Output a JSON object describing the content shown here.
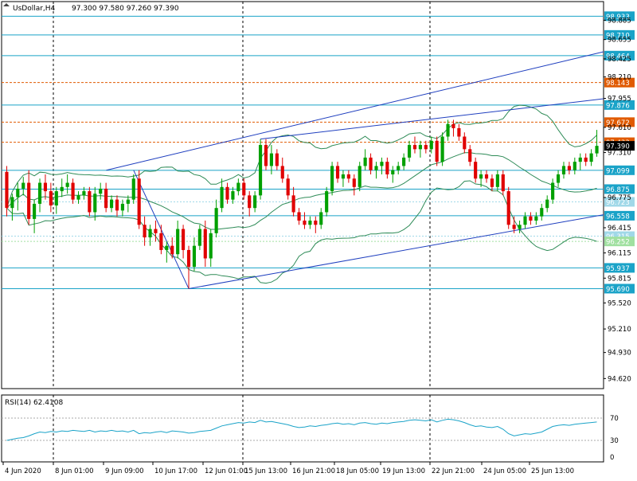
{
  "header": {
    "symbol": "UsDollar,H4",
    "ohlc": "97.300 97.580 97.260 97.390"
  },
  "rsi_label": "RSI(14) 62.4108",
  "colors": {
    "bull": "#00a000",
    "bear": "#e00000",
    "ma": "#2e8b57",
    "level": "#1aa3c8",
    "resistance": "#e05a00",
    "trend": "#1f3fbf",
    "rsi": "#1aa3c8",
    "price_marker": "#000000"
  },
  "chart_data": {
    "type": "candlestick",
    "title": "",
    "ylim": [
      94.5,
      99.05
    ],
    "y_ticks": [
      "98.885",
      "98.655",
      "98.425",
      "98.210",
      "97.955",
      "97.610",
      "97.310",
      "96.775",
      "96.415",
      "96.115",
      "95.815",
      "95.520",
      "95.210",
      "94.930",
      "94.620"
    ],
    "x_ticks": [
      "4 Jun 2020",
      "8 Jun 01:00",
      "9 Jun 09:00",
      "10 Jun 17:00",
      "12 Jun 01:00",
      "15 Jun 13:00",
      "16 Jun 21:00",
      "18 Jun 05:00",
      "19 Jun 13:00",
      "22 Jun 21:00",
      "24 Jun 05:00",
      "25 Jun 13:00"
    ],
    "candles": [
      [
        97.08,
        97.15,
        96.55,
        96.65
      ],
      [
        96.65,
        96.82,
        96.5,
        96.78
      ],
      [
        96.78,
        96.95,
        96.62,
        96.88
      ],
      [
        96.88,
        97.02,
        96.8,
        96.95
      ],
      [
        96.95,
        97.1,
        96.45,
        96.52
      ],
      [
        96.52,
        96.75,
        96.35,
        96.7
      ],
      [
        96.7,
        97.0,
        96.6,
        96.95
      ],
      [
        96.95,
        97.05,
        96.75,
        96.85
      ],
      [
        96.85,
        96.95,
        96.6,
        96.68
      ],
      [
        96.68,
        96.9,
        96.58,
        96.85
      ],
      [
        96.85,
        97.0,
        96.78,
        96.9
      ],
      [
        96.9,
        97.05,
        96.82,
        96.95
      ],
      [
        96.95,
        97.0,
        96.7,
        96.75
      ],
      [
        96.75,
        96.85,
        96.7,
        96.8
      ],
      [
        96.8,
        96.9,
        96.75,
        96.85
      ],
      [
        96.85,
        96.9,
        96.55,
        96.6
      ],
      [
        96.6,
        96.9,
        96.5,
        96.82
      ],
      [
        96.82,
        96.95,
        96.75,
        96.88
      ],
      [
        96.88,
        96.95,
        96.6,
        96.65
      ],
      [
        96.65,
        96.8,
        96.6,
        96.75
      ],
      [
        96.75,
        96.8,
        96.55,
        96.62
      ],
      [
        96.62,
        96.75,
        96.55,
        96.7
      ],
      [
        96.7,
        96.8,
        96.6,
        96.75
      ],
      [
        96.75,
        97.05,
        96.7,
        97.0
      ],
      [
        97.0,
        97.1,
        96.4,
        96.45
      ],
      [
        96.45,
        96.55,
        96.2,
        96.3
      ],
      [
        96.3,
        96.45,
        96.2,
        96.4
      ],
      [
        96.4,
        96.5,
        96.25,
        96.35
      ],
      [
        96.35,
        96.45,
        96.1,
        96.15
      ],
      [
        96.15,
        96.25,
        96.0,
        96.2
      ],
      [
        96.2,
        96.3,
        96.05,
        96.1
      ],
      [
        96.1,
        96.5,
        96.05,
        96.4
      ],
      [
        96.4,
        96.45,
        96.05,
        96.15
      ],
      [
        96.15,
        96.2,
        95.69,
        95.95
      ],
      [
        95.95,
        96.3,
        95.9,
        96.2
      ],
      [
        96.2,
        96.45,
        96.15,
        96.4
      ],
      [
        96.4,
        96.5,
        95.95,
        96.05
      ],
      [
        96.05,
        96.4,
        95.95,
        96.35
      ],
      [
        96.35,
        96.75,
        96.3,
        96.65
      ],
      [
        96.65,
        97.0,
        96.6,
        96.9
      ],
      [
        96.9,
        96.95,
        96.7,
        96.75
      ],
      [
        96.75,
        96.9,
        96.7,
        96.85
      ],
      [
        96.85,
        97.0,
        96.8,
        96.95
      ],
      [
        96.95,
        97.0,
        96.75,
        96.8
      ],
      [
        96.8,
        96.85,
        96.55,
        96.65
      ],
      [
        96.65,
        96.85,
        96.6,
        96.8
      ],
      [
        96.8,
        97.47,
        96.75,
        97.4
      ],
      [
        97.4,
        97.47,
        97.1,
        97.15
      ],
      [
        97.15,
        97.4,
        97.05,
        97.3
      ],
      [
        97.3,
        97.35,
        97.1,
        97.15
      ],
      [
        97.15,
        97.25,
        96.95,
        97.0
      ],
      [
        97.0,
        97.05,
        96.75,
        96.8
      ],
      [
        96.8,
        96.9,
        96.55,
        96.6
      ],
      [
        96.6,
        96.65,
        96.45,
        96.5
      ],
      [
        96.5,
        96.6,
        96.4,
        96.45
      ],
      [
        96.45,
        96.55,
        96.4,
        96.5
      ],
      [
        96.5,
        96.55,
        96.35,
        96.45
      ],
      [
        96.45,
        96.65,
        96.4,
        96.6
      ],
      [
        96.6,
        96.9,
        96.55,
        96.85
      ],
      [
        96.85,
        97.2,
        96.8,
        97.15
      ],
      [
        97.15,
        97.2,
        96.95,
        97.0
      ],
      [
        97.0,
        97.1,
        96.9,
        97.05
      ],
      [
        97.05,
        97.1,
        96.95,
        97.0
      ],
      [
        97.0,
        97.05,
        96.8,
        96.9
      ],
      [
        96.9,
        97.2,
        96.85,
        97.15
      ],
      [
        97.15,
        97.35,
        97.1,
        97.25
      ],
      [
        97.25,
        97.3,
        97.05,
        97.1
      ],
      [
        97.1,
        97.2,
        97.0,
        97.15
      ],
      [
        97.15,
        97.25,
        97.05,
        97.2
      ],
      [
        97.2,
        97.25,
        97.0,
        97.05
      ],
      [
        97.05,
        97.15,
        96.95,
        97.1
      ],
      [
        97.1,
        97.2,
        97.05,
        97.15
      ],
      [
        97.15,
        97.3,
        97.1,
        97.25
      ],
      [
        97.25,
        97.45,
        97.2,
        97.4
      ],
      [
        97.4,
        97.5,
        97.3,
        97.35
      ],
      [
        97.35,
        97.45,
        97.25,
        97.4
      ],
      [
        97.4,
        97.45,
        97.3,
        97.35
      ],
      [
        97.35,
        97.5,
        97.3,
        97.45
      ],
      [
        97.45,
        97.5,
        97.15,
        97.2
      ],
      [
        97.2,
        97.55,
        97.15,
        97.5
      ],
      [
        97.5,
        97.7,
        97.45,
        97.65
      ],
      [
        97.65,
        97.7,
        97.5,
        97.6
      ],
      [
        97.6,
        97.65,
        97.45,
        97.5
      ],
      [
        97.5,
        97.55,
        97.3,
        97.35
      ],
      [
        97.35,
        97.4,
        97.15,
        97.2
      ],
      [
        97.2,
        97.25,
        96.95,
        97.0
      ],
      [
        97.0,
        97.1,
        96.9,
        97.05
      ],
      [
        97.05,
        97.1,
        96.95,
        97.0
      ],
      [
        97.0,
        97.05,
        96.85,
        96.9
      ],
      [
        96.9,
        97.1,
        96.85,
        97.05
      ],
      [
        97.05,
        97.1,
        96.8,
        96.85
      ],
      [
        96.85,
        96.9,
        96.4,
        96.45
      ],
      [
        96.45,
        96.55,
        96.35,
        96.4
      ],
      [
        96.4,
        96.5,
        96.35,
        96.45
      ],
      [
        96.45,
        96.6,
        96.4,
        96.55
      ],
      [
        96.55,
        96.6,
        96.45,
        96.5
      ],
      [
        96.5,
        96.6,
        96.45,
        96.55
      ],
      [
        96.55,
        96.7,
        96.5,
        96.65
      ],
      [
        96.65,
        96.8,
        96.6,
        96.75
      ],
      [
        96.75,
        97.0,
        96.7,
        96.95
      ],
      [
        96.95,
        97.1,
        96.9,
        97.05
      ],
      [
        97.05,
        97.2,
        97.0,
        97.15
      ],
      [
        97.15,
        97.2,
        97.05,
        97.1
      ],
      [
        97.1,
        97.25,
        97.05,
        97.2
      ],
      [
        97.2,
        97.3,
        97.1,
        97.25
      ],
      [
        97.25,
        97.3,
        97.15,
        97.2
      ],
      [
        97.2,
        97.35,
        97.15,
        97.3
      ],
      [
        97.3,
        97.58,
        97.26,
        97.39
      ]
    ],
    "horizontal_levels": [
      {
        "value": "98.933",
        "price": 98.933,
        "color": "#1aa3c8",
        "style": "solid"
      },
      {
        "value": "98.710",
        "price": 98.71,
        "color": "#1aa3c8",
        "style": "solid"
      },
      {
        "value": "98.464",
        "price": 98.464,
        "color": "#1aa3c8",
        "style": "solid"
      },
      {
        "value": "98.143",
        "price": 98.143,
        "color": "#e05a00",
        "style": "dashed"
      },
      {
        "value": "97.876",
        "price": 97.876,
        "color": "#1aa3c8",
        "style": "solid"
      },
      {
        "value": "97.672",
        "price": 97.672,
        "color": "#e05a00",
        "style": "dashed"
      },
      {
        "value": "97.433",
        "price": 97.433,
        "color": "#e05a00",
        "style": "dashed"
      },
      {
        "value": "97.099",
        "price": 97.099,
        "color": "#1aa3c8",
        "style": "solid"
      },
      {
        "value": "96.875",
        "price": 96.875,
        "color": "#1aa3c8",
        "style": "solid"
      },
      {
        "value": "96.723",
        "price": 96.723,
        "color": "#a0d8e8",
        "style": "dotted"
      },
      {
        "value": "96.558",
        "price": 96.558,
        "color": "#1aa3c8",
        "style": "solid"
      },
      {
        "value": "96.315",
        "price": 96.315,
        "color": "#a0d8e8",
        "style": "dotted"
      },
      {
        "value": "96.252",
        "price": 96.252,
        "color": "#a0e0a0",
        "style": "dotted"
      },
      {
        "value": "95.937",
        "price": 95.937,
        "color": "#1aa3c8",
        "style": "solid"
      },
      {
        "value": "95.690",
        "price": 95.69,
        "color": "#1aa3c8",
        "style": "solid"
      }
    ],
    "current_price": "97.390",
    "rsi": {
      "period": 14,
      "value": 62.4108,
      "ylim": [
        0,
        100
      ],
      "levels": [
        70,
        30
      ],
      "tick_labels": [
        "70",
        "30",
        "0"
      ],
      "values": [
        30,
        32,
        34,
        35,
        38,
        42,
        45,
        44,
        46,
        45,
        47,
        46,
        48,
        47,
        46,
        48,
        45,
        47,
        46,
        48,
        46,
        47,
        45,
        48,
        42,
        44,
        43,
        45,
        46,
        44,
        47,
        46,
        45,
        43,
        44,
        46,
        47,
        48,
        52,
        56,
        58,
        60,
        62,
        61,
        63,
        62,
        66,
        63,
        64,
        62,
        60,
        58,
        55,
        53,
        54,
        56,
        55,
        57,
        58,
        60,
        61,
        59,
        60,
        58,
        61,
        62,
        60,
        59,
        61,
        60,
        62,
        63,
        64,
        66,
        67,
        66,
        65,
        67,
        63,
        66,
        68,
        67,
        65,
        62,
        58,
        55,
        56,
        54,
        53,
        55,
        50,
        42,
        38,
        40,
        42,
        41,
        43,
        45,
        50,
        55,
        57,
        58,
        57,
        59,
        60,
        61,
        62,
        63
      ]
    }
  }
}
